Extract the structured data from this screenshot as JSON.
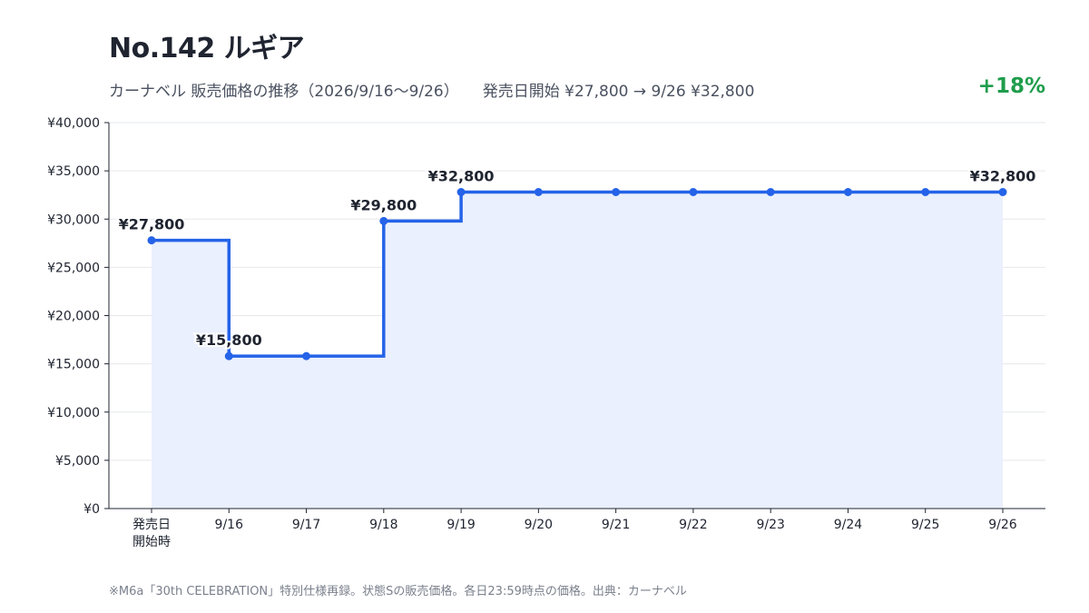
{
  "header": {
    "title": "No.142 ルギア",
    "subtitle_left": "カーナベル 販売価格の推移（2026/9/16〜9/26）",
    "subtitle_right": "発売日開始 ¥27,800 → 9/26 ¥32,800",
    "change": "+18%",
    "change_color": "#1f9d4c"
  },
  "footer": {
    "note": "※M6a「30th CELEBRATION」特別仕様再録。状態Sの販売価格。各日23:59時点の価格。出典：カーナベル"
  },
  "chart_data": {
    "type": "line",
    "step": true,
    "categories": [
      "発売日\n開始時",
      "9/16",
      "9/17",
      "9/18",
      "9/19",
      "9/20",
      "9/21",
      "9/22",
      "9/23",
      "9/24",
      "9/25",
      "9/26"
    ],
    "values": [
      27800,
      15800,
      15800,
      29800,
      32800,
      32800,
      32800,
      32800,
      32800,
      32800,
      32800,
      32800
    ],
    "data_labels": [
      {
        "index": 0,
        "text": "¥27,800"
      },
      {
        "index": 1,
        "text": "¥15,800"
      },
      {
        "index": 3,
        "text": "¥29,800"
      },
      {
        "index": 4,
        "text": "¥32,800"
      },
      {
        "index": 11,
        "text": "¥32,800"
      }
    ],
    "ylim": [
      0,
      40000
    ],
    "yticks": [
      0,
      5000,
      10000,
      15000,
      20000,
      25000,
      30000,
      35000,
      40000
    ],
    "ytick_labels": [
      "¥0",
      "¥5,000",
      "¥10,000",
      "¥15,000",
      "¥20,000",
      "¥25,000",
      "¥30,000",
      "¥35,000",
      "¥40,000"
    ],
    "grid": true,
    "line_color": "#2563e8",
    "fill_color": "#eaf0fd"
  }
}
